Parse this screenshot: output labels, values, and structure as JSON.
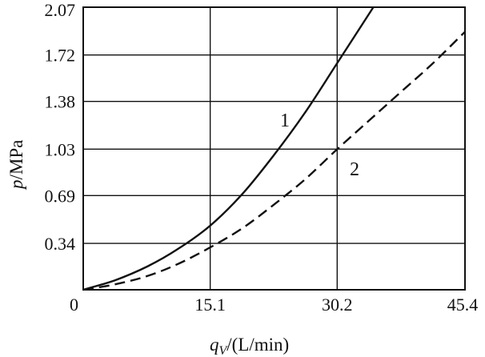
{
  "chart_data": {
    "type": "line",
    "xlabel": {
      "main": "q",
      "sub": "V",
      "rest": "/(L/min)"
    },
    "ylabel": {
      "main": "p",
      "rest": "/MPa"
    },
    "x_ticks": [
      "0",
      "15.1",
      "30.2",
      "45.4"
    ],
    "y_ticks": [
      "0.34",
      "0.69",
      "1.03",
      "1.38",
      "1.72",
      "2.07"
    ],
    "xlim": [
      0,
      45.4
    ],
    "ylim": [
      0,
      2.07
    ],
    "grid": true,
    "series": [
      {
        "name": "1",
        "style": "solid",
        "x": [
          0,
          3.8,
          7.6,
          11.3,
          15.1,
          18.9,
          22.6,
          26.4,
          30.2,
          34.5
        ],
        "y": [
          0,
          0.07,
          0.17,
          0.3,
          0.47,
          0.7,
          0.98,
          1.3,
          1.66,
          2.07
        ]
      },
      {
        "name": "2",
        "style": "dashed",
        "x": [
          0,
          3.8,
          7.6,
          11.3,
          15.1,
          18.9,
          22.6,
          26.4,
          30.2,
          34.0,
          37.8,
          41.6,
          45.4
        ],
        "y": [
          0,
          0.04,
          0.1,
          0.19,
          0.31,
          0.45,
          0.62,
          0.81,
          1.03,
          1.24,
          1.45,
          1.66,
          1.89
        ]
      }
    ]
  }
}
